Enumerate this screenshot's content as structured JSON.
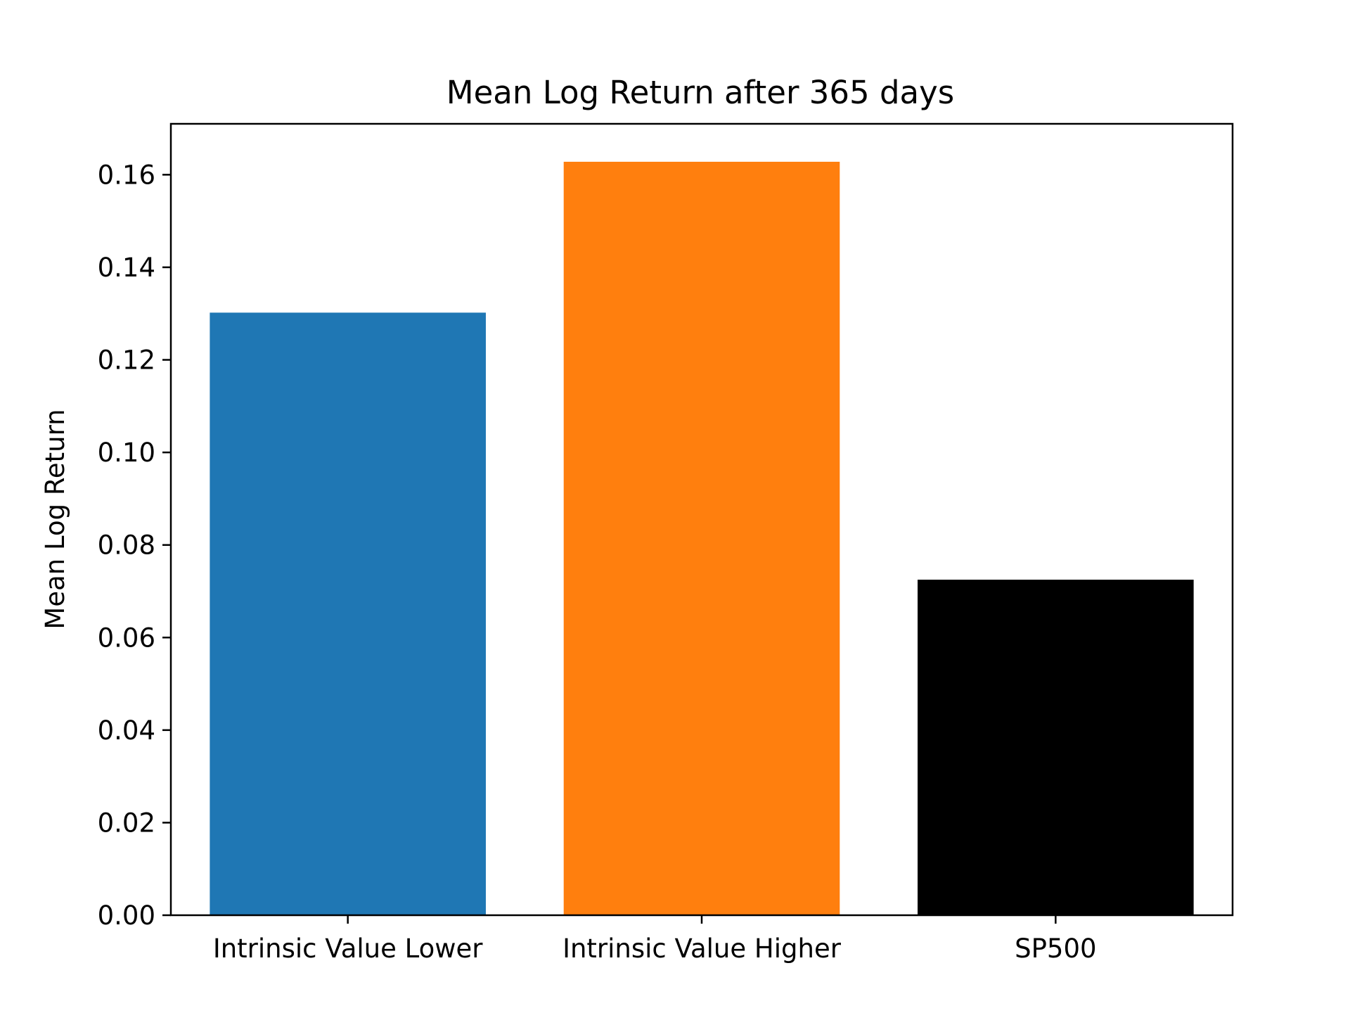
{
  "chart_data": {
    "type": "bar",
    "title": "Mean Log Return after 365 days",
    "xlabel": "",
    "ylabel": "Mean Log Return",
    "categories": [
      "Intrinsic Value Lower",
      "Intrinsic Value Higher",
      "SP500"
    ],
    "values": [
      0.1302,
      0.1628,
      0.0725
    ],
    "colors": [
      "#1f77b4",
      "#ff7f0e",
      "#000000"
    ],
    "ylim": [
      0,
      0.171
    ],
    "yticks": [
      "0.00",
      "0.02",
      "0.04",
      "0.06",
      "0.08",
      "0.10",
      "0.12",
      "0.14",
      "0.16"
    ],
    "grid": false,
    "legend": "none"
  }
}
